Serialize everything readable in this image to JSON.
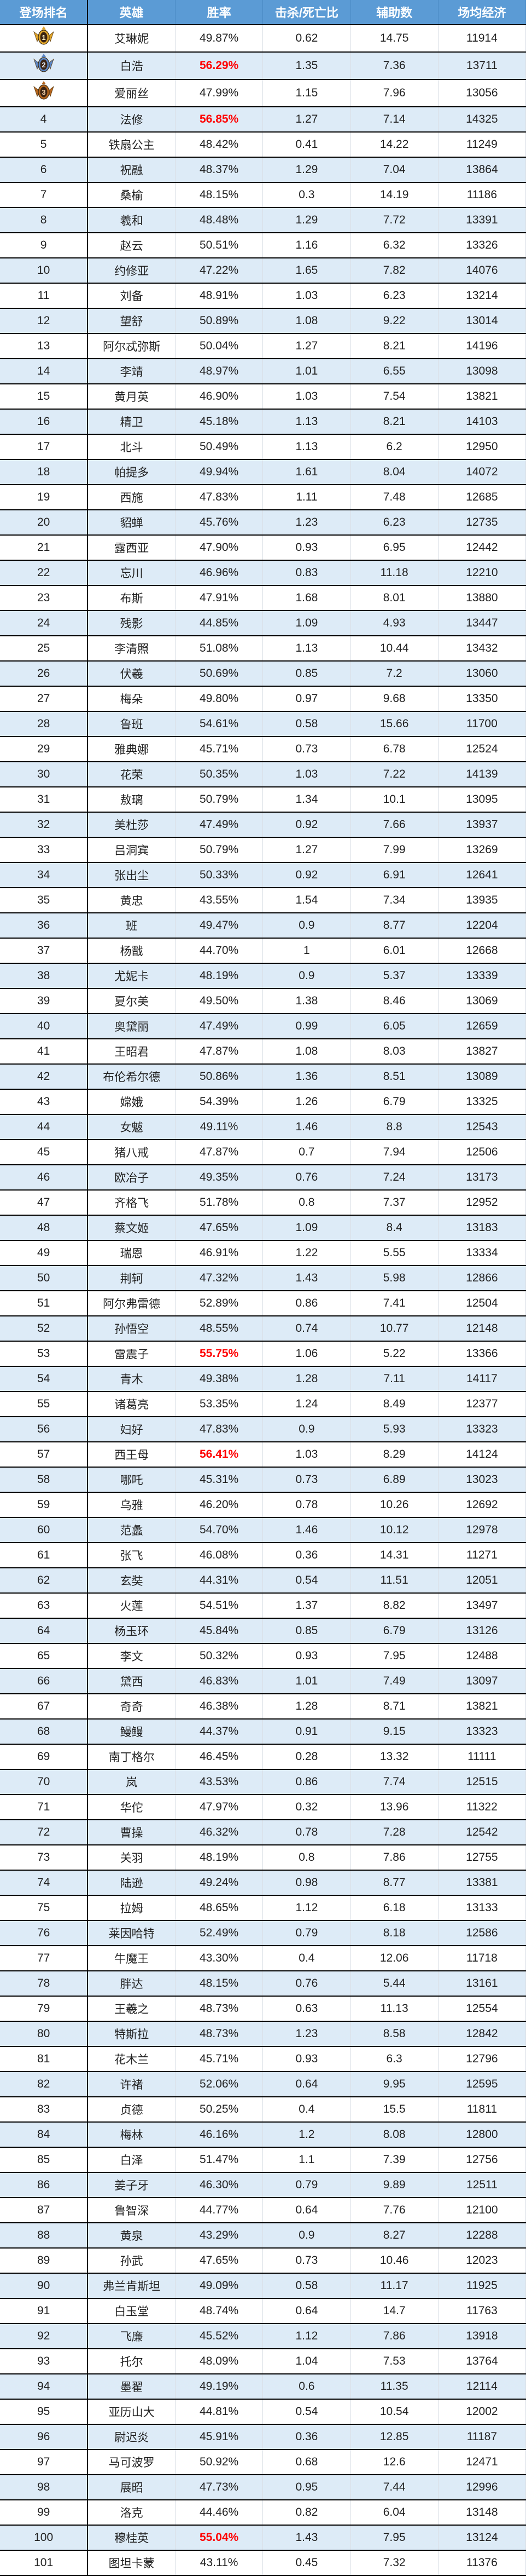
{
  "columns": [
    "登场排名",
    "英雄",
    "胜率",
    "击杀/死亡比",
    "辅助数",
    "场均经济"
  ],
  "colors": {
    "header_bg": "#5b9bd5",
    "alt_row_bg": "#ddebf7",
    "highlight": "#ff0000",
    "medal_gold": "#e0a52a",
    "medal_silver": "#5b86c4",
    "medal_bronze": "#b5651d"
  },
  "medals": {
    "1": "gold-medal-icon",
    "2": "silver-medal-icon",
    "3": "bronze-medal-icon"
  },
  "rows": [
    {
      "rank": "1",
      "hero": "艾琳妮",
      "win": "49.87%",
      "kda": "0.62",
      "assist": "14.75",
      "econ": "11914"
    },
    {
      "rank": "2",
      "hero": "白浩",
      "win": "56.29%",
      "kda": "1.35",
      "assist": "7.36",
      "econ": "13711",
      "highlight": true
    },
    {
      "rank": "3",
      "hero": "爱丽丝",
      "win": "47.99%",
      "kda": "1.15",
      "assist": "7.96",
      "econ": "13056"
    },
    {
      "rank": "4",
      "hero": "法修",
      "win": "56.85%",
      "kda": "1.27",
      "assist": "7.14",
      "econ": "14325",
      "highlight": true
    },
    {
      "rank": "5",
      "hero": "铁扇公主",
      "win": "48.42%",
      "kda": "0.41",
      "assist": "14.22",
      "econ": "11249"
    },
    {
      "rank": "6",
      "hero": "祝融",
      "win": "48.37%",
      "kda": "1.29",
      "assist": "7.04",
      "econ": "13864"
    },
    {
      "rank": "7",
      "hero": "桑榆",
      "win": "48.15%",
      "kda": "0.3",
      "assist": "14.19",
      "econ": "11186"
    },
    {
      "rank": "8",
      "hero": "羲和",
      "win": "48.48%",
      "kda": "1.29",
      "assist": "7.72",
      "econ": "13391"
    },
    {
      "rank": "9",
      "hero": "赵云",
      "win": "50.51%",
      "kda": "1.16",
      "assist": "6.32",
      "econ": "13326"
    },
    {
      "rank": "10",
      "hero": "约修亚",
      "win": "47.22%",
      "kda": "1.65",
      "assist": "7.82",
      "econ": "14076"
    },
    {
      "rank": "11",
      "hero": "刘备",
      "win": "48.91%",
      "kda": "1.03",
      "assist": "6.23",
      "econ": "13214"
    },
    {
      "rank": "12",
      "hero": "望舒",
      "win": "50.89%",
      "kda": "1.08",
      "assist": "9.22",
      "econ": "13014"
    },
    {
      "rank": "13",
      "hero": "阿尔忒弥斯",
      "win": "50.04%",
      "kda": "1.27",
      "assist": "8.21",
      "econ": "14196"
    },
    {
      "rank": "14",
      "hero": "李靖",
      "win": "48.97%",
      "kda": "1.01",
      "assist": "6.55",
      "econ": "13098"
    },
    {
      "rank": "15",
      "hero": "黄月英",
      "win": "46.90%",
      "kda": "1.03",
      "assist": "7.54",
      "econ": "13821"
    },
    {
      "rank": "16",
      "hero": "精卫",
      "win": "45.18%",
      "kda": "1.13",
      "assist": "8.21",
      "econ": "14103"
    },
    {
      "rank": "17",
      "hero": "北斗",
      "win": "50.49%",
      "kda": "1.13",
      "assist": "6.2",
      "econ": "12950"
    },
    {
      "rank": "18",
      "hero": "帕提多",
      "win": "49.94%",
      "kda": "1.61",
      "assist": "8.04",
      "econ": "14072"
    },
    {
      "rank": "19",
      "hero": "西施",
      "win": "47.83%",
      "kda": "1.11",
      "assist": "7.48",
      "econ": "12685"
    },
    {
      "rank": "20",
      "hero": "貂蝉",
      "win": "45.76%",
      "kda": "1.23",
      "assist": "6.23",
      "econ": "12735"
    },
    {
      "rank": "21",
      "hero": "露西亚",
      "win": "47.90%",
      "kda": "0.93",
      "assist": "6.95",
      "econ": "12442"
    },
    {
      "rank": "22",
      "hero": "忘川",
      "win": "46.96%",
      "kda": "0.83",
      "assist": "11.18",
      "econ": "12210"
    },
    {
      "rank": "23",
      "hero": "布斯",
      "win": "47.91%",
      "kda": "1.68",
      "assist": "8.01",
      "econ": "13880"
    },
    {
      "rank": "24",
      "hero": "残影",
      "win": "44.85%",
      "kda": "1.09",
      "assist": "4.93",
      "econ": "13447"
    },
    {
      "rank": "25",
      "hero": "李清照",
      "win": "51.08%",
      "kda": "1.13",
      "assist": "10.44",
      "econ": "13432"
    },
    {
      "rank": "26",
      "hero": "伏羲",
      "win": "50.69%",
      "kda": "0.85",
      "assist": "7.2",
      "econ": "13060"
    },
    {
      "rank": "27",
      "hero": "梅朵",
      "win": "49.80%",
      "kda": "0.97",
      "assist": "9.68",
      "econ": "13350"
    },
    {
      "rank": "28",
      "hero": "鲁班",
      "win": "54.61%",
      "kda": "0.58",
      "assist": "15.66",
      "econ": "11700"
    },
    {
      "rank": "29",
      "hero": "雅典娜",
      "win": "45.71%",
      "kda": "0.73",
      "assist": "6.78",
      "econ": "12524"
    },
    {
      "rank": "30",
      "hero": "花荣",
      "win": "50.35%",
      "kda": "1.03",
      "assist": "7.22",
      "econ": "14139"
    },
    {
      "rank": "31",
      "hero": "敖璃",
      "win": "50.79%",
      "kda": "1.34",
      "assist": "10.1",
      "econ": "13095"
    },
    {
      "rank": "32",
      "hero": "美杜莎",
      "win": "47.49%",
      "kda": "0.92",
      "assist": "7.66",
      "econ": "13937"
    },
    {
      "rank": "33",
      "hero": "吕洞宾",
      "win": "50.79%",
      "kda": "1.27",
      "assist": "7.99",
      "econ": "13269"
    },
    {
      "rank": "34",
      "hero": "张出尘",
      "win": "50.33%",
      "kda": "0.92",
      "assist": "6.91",
      "econ": "12641"
    },
    {
      "rank": "35",
      "hero": "黄忠",
      "win": "43.55%",
      "kda": "1.54",
      "assist": "7.34",
      "econ": "13935"
    },
    {
      "rank": "36",
      "hero": "班",
      "win": "49.47%",
      "kda": "0.9",
      "assist": "8.77",
      "econ": "12204"
    },
    {
      "rank": "37",
      "hero": "杨戬",
      "win": "44.70%",
      "kda": "1",
      "assist": "6.01",
      "econ": "12668"
    },
    {
      "rank": "38",
      "hero": "尤妮卡",
      "win": "48.19%",
      "kda": "0.9",
      "assist": "5.37",
      "econ": "13339"
    },
    {
      "rank": "39",
      "hero": "夏尔美",
      "win": "49.50%",
      "kda": "1.38",
      "assist": "8.46",
      "econ": "13069"
    },
    {
      "rank": "40",
      "hero": "奥黛丽",
      "win": "47.49%",
      "kda": "0.99",
      "assist": "6.05",
      "econ": "12659"
    },
    {
      "rank": "41",
      "hero": "王昭君",
      "win": "47.87%",
      "kda": "1.08",
      "assist": "8.03",
      "econ": "13827"
    },
    {
      "rank": "42",
      "hero": "布伦希尔德",
      "win": "50.86%",
      "kda": "1.36",
      "assist": "8.51",
      "econ": "13089"
    },
    {
      "rank": "43",
      "hero": "嫦娥",
      "win": "54.39%",
      "kda": "1.26",
      "assist": "6.79",
      "econ": "13325"
    },
    {
      "rank": "44",
      "hero": "女魃",
      "win": "49.11%",
      "kda": "1.46",
      "assist": "8.8",
      "econ": "12543"
    },
    {
      "rank": "45",
      "hero": "猪八戒",
      "win": "47.87%",
      "kda": "0.7",
      "assist": "7.94",
      "econ": "12506"
    },
    {
      "rank": "46",
      "hero": "欧冶子",
      "win": "49.35%",
      "kda": "0.76",
      "assist": "7.24",
      "econ": "13173"
    },
    {
      "rank": "47",
      "hero": "齐格飞",
      "win": "51.78%",
      "kda": "0.8",
      "assist": "7.37",
      "econ": "12952"
    },
    {
      "rank": "48",
      "hero": "蔡文姬",
      "win": "47.65%",
      "kda": "1.09",
      "assist": "8.4",
      "econ": "13183"
    },
    {
      "rank": "49",
      "hero": "瑞恩",
      "win": "46.91%",
      "kda": "1.22",
      "assist": "5.55",
      "econ": "13334"
    },
    {
      "rank": "50",
      "hero": "荆轲",
      "win": "47.32%",
      "kda": "1.43",
      "assist": "5.98",
      "econ": "12866"
    },
    {
      "rank": "51",
      "hero": "阿尔弗雷德",
      "win": "52.89%",
      "kda": "0.86",
      "assist": "7.41",
      "econ": "12504"
    },
    {
      "rank": "52",
      "hero": "孙悟空",
      "win": "48.55%",
      "kda": "0.74",
      "assist": "10.77",
      "econ": "12148"
    },
    {
      "rank": "53",
      "hero": "雷震子",
      "win": "55.75%",
      "kda": "1.06",
      "assist": "5.22",
      "econ": "13366",
      "highlight": true
    },
    {
      "rank": "54",
      "hero": "青木",
      "win": "49.38%",
      "kda": "1.28",
      "assist": "7.11",
      "econ": "14117"
    },
    {
      "rank": "55",
      "hero": "诸葛亮",
      "win": "53.35%",
      "kda": "1.24",
      "assist": "8.49",
      "econ": "12377"
    },
    {
      "rank": "56",
      "hero": "妇好",
      "win": "47.83%",
      "kda": "0.9",
      "assist": "5.93",
      "econ": "13323"
    },
    {
      "rank": "57",
      "hero": "西王母",
      "win": "56.41%",
      "kda": "1.03",
      "assist": "8.29",
      "econ": "14124",
      "highlight": true
    },
    {
      "rank": "58",
      "hero": "哪吒",
      "win": "45.31%",
      "kda": "0.73",
      "assist": "6.89",
      "econ": "13023"
    },
    {
      "rank": "59",
      "hero": "乌雅",
      "win": "46.20%",
      "kda": "0.78",
      "assist": "10.26",
      "econ": "12692"
    },
    {
      "rank": "60",
      "hero": "范蠡",
      "win": "54.70%",
      "kda": "1.46",
      "assist": "10.12",
      "econ": "12978"
    },
    {
      "rank": "61",
      "hero": "张飞",
      "win": "46.08%",
      "kda": "0.36",
      "assist": "14.31",
      "econ": "11271"
    },
    {
      "rank": "62",
      "hero": "玄奘",
      "win": "44.31%",
      "kda": "0.54",
      "assist": "11.51",
      "econ": "12051"
    },
    {
      "rank": "63",
      "hero": "火莲",
      "win": "54.51%",
      "kda": "1.37",
      "assist": "8.82",
      "econ": "13497"
    },
    {
      "rank": "64",
      "hero": "杨玉环",
      "win": "45.84%",
      "kda": "0.85",
      "assist": "6.79",
      "econ": "13126"
    },
    {
      "rank": "65",
      "hero": "李文",
      "win": "50.32%",
      "kda": "0.93",
      "assist": "7.95",
      "econ": "12488"
    },
    {
      "rank": "66",
      "hero": "黛西",
      "win": "46.83%",
      "kda": "1.01",
      "assist": "7.49",
      "econ": "13097"
    },
    {
      "rank": "67",
      "hero": "奇奇",
      "win": "46.38%",
      "kda": "1.28",
      "assist": "8.71",
      "econ": "13821"
    },
    {
      "rank": "68",
      "hero": "鳗鳗",
      "win": "44.37%",
      "kda": "0.91",
      "assist": "9.15",
      "econ": "13323"
    },
    {
      "rank": "69",
      "hero": "南丁格尔",
      "win": "46.45%",
      "kda": "0.28",
      "assist": "13.32",
      "econ": "11111"
    },
    {
      "rank": "70",
      "hero": "岚",
      "win": "43.53%",
      "kda": "0.86",
      "assist": "7.74",
      "econ": "12515"
    },
    {
      "rank": "71",
      "hero": "华佗",
      "win": "47.97%",
      "kda": "0.32",
      "assist": "13.96",
      "econ": "11322"
    },
    {
      "rank": "72",
      "hero": "曹操",
      "win": "46.32%",
      "kda": "0.78",
      "assist": "7.28",
      "econ": "12542"
    },
    {
      "rank": "73",
      "hero": "关羽",
      "win": "48.19%",
      "kda": "0.8",
      "assist": "7.86",
      "econ": "12755"
    },
    {
      "rank": "74",
      "hero": "陆逊",
      "win": "49.24%",
      "kda": "0.98",
      "assist": "8.77",
      "econ": "13381"
    },
    {
      "rank": "75",
      "hero": "拉姆",
      "win": "48.65%",
      "kda": "1.12",
      "assist": "6.18",
      "econ": "13133"
    },
    {
      "rank": "76",
      "hero": "莱因哈特",
      "win": "52.49%",
      "kda": "0.79",
      "assist": "8.18",
      "econ": "12586"
    },
    {
      "rank": "77",
      "hero": "牛魔王",
      "win": "43.30%",
      "kda": "0.4",
      "assist": "12.06",
      "econ": "11718"
    },
    {
      "rank": "78",
      "hero": "胖达",
      "win": "48.15%",
      "kda": "0.76",
      "assist": "5.44",
      "econ": "13161"
    },
    {
      "rank": "79",
      "hero": "王羲之",
      "win": "48.73%",
      "kda": "0.63",
      "assist": "11.13",
      "econ": "12554"
    },
    {
      "rank": "80",
      "hero": "特斯拉",
      "win": "48.73%",
      "kda": "1.23",
      "assist": "8.58",
      "econ": "12842"
    },
    {
      "rank": "81",
      "hero": "花木兰",
      "win": "45.71%",
      "kda": "0.93",
      "assist": "6.3",
      "econ": "12796"
    },
    {
      "rank": "82",
      "hero": "许褚",
      "win": "52.06%",
      "kda": "0.64",
      "assist": "9.95",
      "econ": "12595"
    },
    {
      "rank": "83",
      "hero": "贞德",
      "win": "50.25%",
      "kda": "0.4",
      "assist": "15.5",
      "econ": "11811"
    },
    {
      "rank": "84",
      "hero": "梅林",
      "win": "46.16%",
      "kda": "1.2",
      "assist": "8.08",
      "econ": "12800"
    },
    {
      "rank": "85",
      "hero": "白泽",
      "win": "51.47%",
      "kda": "1.1",
      "assist": "7.39",
      "econ": "12756"
    },
    {
      "rank": "86",
      "hero": "姜子牙",
      "win": "46.30%",
      "kda": "0.79",
      "assist": "9.89",
      "econ": "12511"
    },
    {
      "rank": "87",
      "hero": "鲁智深",
      "win": "44.77%",
      "kda": "0.64",
      "assist": "7.76",
      "econ": "12100"
    },
    {
      "rank": "88",
      "hero": "黄泉",
      "win": "43.29%",
      "kda": "0.9",
      "assist": "8.27",
      "econ": "12288"
    },
    {
      "rank": "89",
      "hero": "孙武",
      "win": "47.65%",
      "kda": "0.73",
      "assist": "10.46",
      "econ": "12023"
    },
    {
      "rank": "90",
      "hero": "弗兰肯斯坦",
      "win": "49.09%",
      "kda": "0.58",
      "assist": "11.17",
      "econ": "11925"
    },
    {
      "rank": "91",
      "hero": "白玉堂",
      "win": "48.74%",
      "kda": "0.64",
      "assist": "14.7",
      "econ": "11763"
    },
    {
      "rank": "92",
      "hero": "飞廉",
      "win": "45.52%",
      "kda": "1.12",
      "assist": "7.86",
      "econ": "13918"
    },
    {
      "rank": "93",
      "hero": "托尔",
      "win": "48.09%",
      "kda": "1.04",
      "assist": "7.53",
      "econ": "13764"
    },
    {
      "rank": "94",
      "hero": "墨翟",
      "win": "49.19%",
      "kda": "0.6",
      "assist": "11.35",
      "econ": "12114"
    },
    {
      "rank": "95",
      "hero": "亚历山大",
      "win": "44.81%",
      "kda": "0.54",
      "assist": "10.54",
      "econ": "12002"
    },
    {
      "rank": "96",
      "hero": "尉迟炎",
      "win": "45.91%",
      "kda": "0.36",
      "assist": "12.85",
      "econ": "11187"
    },
    {
      "rank": "97",
      "hero": "马可波罗",
      "win": "50.92%",
      "kda": "0.68",
      "assist": "12.6",
      "econ": "12471"
    },
    {
      "rank": "98",
      "hero": "展昭",
      "win": "47.73%",
      "kda": "0.95",
      "assist": "7.44",
      "econ": "12996"
    },
    {
      "rank": "99",
      "hero": "洛克",
      "win": "44.46%",
      "kda": "0.82",
      "assist": "6.04",
      "econ": "13148"
    },
    {
      "rank": "100",
      "hero": "穆桂英",
      "win": "55.04%",
      "kda": "1.43",
      "assist": "7.95",
      "econ": "13124",
      "highlight": true
    },
    {
      "rank": "101",
      "hero": "图坦卡蒙",
      "win": "43.11%",
      "kda": "0.45",
      "assist": "7.32",
      "econ": "11376"
    }
  ]
}
